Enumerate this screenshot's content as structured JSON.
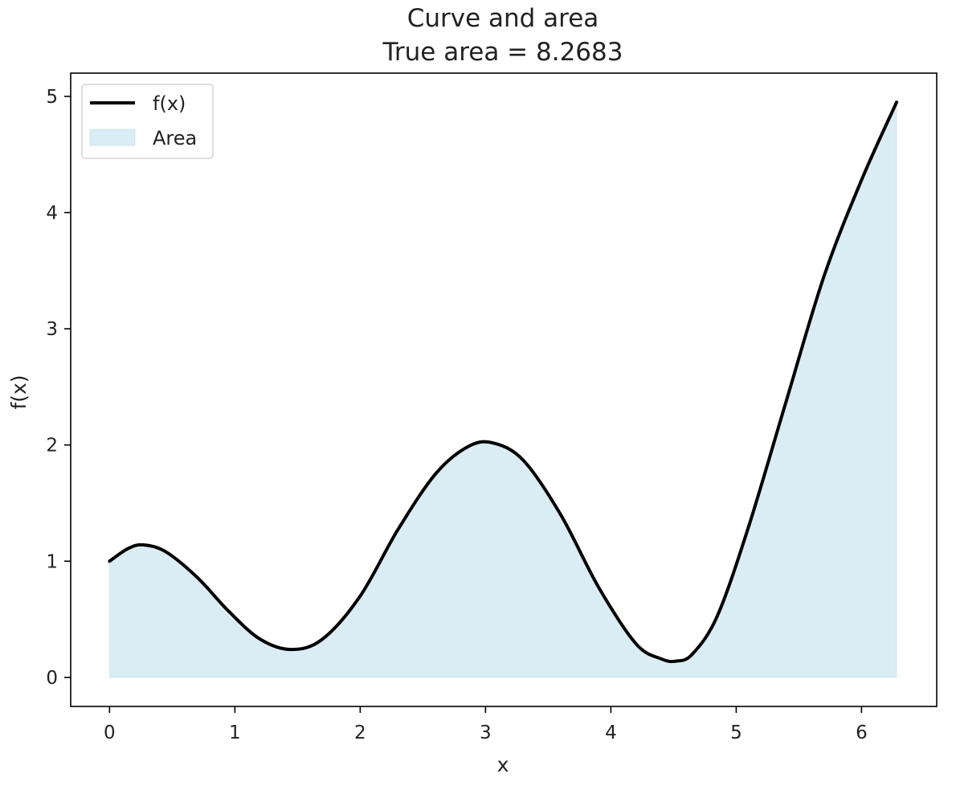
{
  "chart_data": {
    "type": "area",
    "title": "Curve and area",
    "subtitle": "True area = 8.2683",
    "xlabel": "x",
    "ylabel": "f(x)",
    "xlim": [
      -0.31,
      6.6
    ],
    "ylim": [
      -0.25,
      5.2
    ],
    "x_ticks": [
      0,
      1,
      2,
      3,
      4,
      5,
      6
    ],
    "y_ticks": [
      0,
      1,
      2,
      3,
      4,
      5
    ],
    "grid": false,
    "legend": {
      "placement": "top-left",
      "entries": [
        "f(x)",
        "Area"
      ]
    },
    "series": [
      {
        "name": "f(x)",
        "kind": "line",
        "color": "#000000",
        "x": [
          0,
          0.15,
          0.27,
          0.45,
          0.7,
          0.95,
          1.2,
          1.45,
          1.7,
          2.0,
          2.3,
          2.6,
          2.85,
          3.05,
          3.3,
          3.6,
          3.9,
          4.2,
          4.4,
          4.52,
          4.65,
          4.85,
          5.1,
          5.4,
          5.7,
          6.0,
          6.28
        ],
        "y": [
          1.0,
          1.11,
          1.14,
          1.08,
          0.86,
          0.57,
          0.33,
          0.24,
          0.33,
          0.7,
          1.27,
          1.75,
          1.98,
          2.02,
          1.87,
          1.4,
          0.78,
          0.29,
          0.16,
          0.14,
          0.2,
          0.53,
          1.3,
          2.38,
          3.45,
          4.28,
          4.95
        ]
      },
      {
        "name": "Area",
        "kind": "fill",
        "color": "#add8e6"
      }
    ]
  }
}
